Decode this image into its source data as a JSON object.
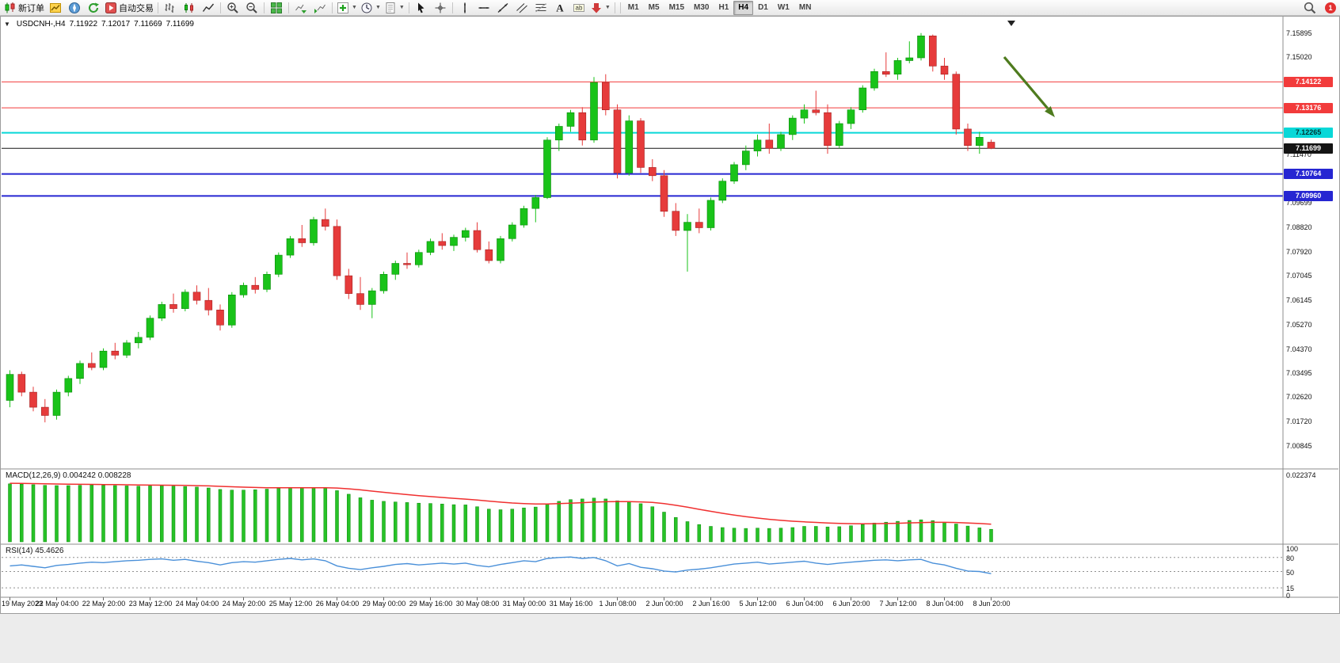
{
  "toolbar": {
    "new_order_label": "新订单",
    "autotrade_label": "自动交易",
    "buttons": [
      {
        "name": "new-order-button",
        "icon": "candlestick-new",
        "label_key": "new_order_label"
      },
      {
        "name": "market-watch-button",
        "icon": "market-watch"
      },
      {
        "name": "navigator-button",
        "icon": "navigator"
      },
      {
        "name": "refresh-button",
        "icon": "refresh"
      },
      {
        "name": "autotrade-button",
        "icon": "autotrade",
        "label_key": "autotrade_label"
      },
      {
        "sep": true
      },
      {
        "name": "bar-chart-button",
        "icon": "bars"
      },
      {
        "name": "candle-chart-button",
        "icon": "candles"
      },
      {
        "name": "line-chart-button",
        "icon": "line"
      },
      {
        "sep": true
      },
      {
        "name": "zoom-in-button",
        "icon": "zoom-in"
      },
      {
        "name": "zoom-out-button",
        "icon": "zoom-out"
      },
      {
        "sep": true
      },
      {
        "name": "tile-windows-button",
        "icon": "grid"
      },
      {
        "sep": true
      },
      {
        "name": "auto-scroll-button",
        "icon": "auto-scroll"
      },
      {
        "name": "chart-shift-button",
        "icon": "chart-shift"
      },
      {
        "sep": true
      },
      {
        "name": "indicators-button",
        "icon": "indicators",
        "dropdown": true
      },
      {
        "name": "periods-button",
        "icon": "clock",
        "dropdown": true
      },
      {
        "name": "templates-button",
        "icon": "template",
        "dropdown": true
      },
      {
        "sep": true
      },
      {
        "name": "cursor-button",
        "icon": "cursor"
      },
      {
        "name": "crosshair-button",
        "icon": "crosshair"
      },
      {
        "sep": true
      },
      {
        "name": "vertical-line-button",
        "icon": "vline"
      },
      {
        "name": "horizontal-line-button",
        "icon": "hline"
      },
      {
        "name": "trendline-button",
        "icon": "trendline"
      },
      {
        "name": "channel-button",
        "icon": "channel"
      },
      {
        "name": "fibonacci-button",
        "icon": "fibonacci"
      },
      {
        "name": "text-button",
        "icon": "text"
      },
      {
        "name": "label-button",
        "icon": "label"
      },
      {
        "name": "arrows-button",
        "icon": "arrows",
        "dropdown": true
      },
      {
        "sep": true
      }
    ],
    "timeframes": [
      "M1",
      "M5",
      "M15",
      "M30",
      "H1",
      "H4",
      "D1",
      "W1",
      "MN"
    ],
    "active_timeframe": "H4",
    "notification_count": "1"
  },
  "chart_header": {
    "symbol": "USDCNH-,H4",
    "open": "7.11922",
    "high": "7.12017",
    "low": "7.11669",
    "close": "7.11699"
  },
  "y_axis": {
    "plain_labels": [
      {
        "price": 7.15895,
        "text": "7.15895"
      },
      {
        "price": 7.1502,
        "text": "7.15020"
      },
      {
        "price": 7.1147,
        "text": "7.11470"
      },
      {
        "price": 7.09699,
        "text": "7.09699"
      },
      {
        "price": 7.0882,
        "text": "7.08820"
      },
      {
        "price": 7.0792,
        "text": "7.07920"
      },
      {
        "price": 7.07045,
        "text": "7.07045"
      },
      {
        "price": 7.06145,
        "text": "7.06145"
      },
      {
        "price": 7.0527,
        "text": "7.05270"
      },
      {
        "price": 7.0437,
        "text": "7.04370"
      },
      {
        "price": 7.03495,
        "text": "7.03495"
      },
      {
        "price": 7.0262,
        "text": "7.02620"
      },
      {
        "price": 7.0172,
        "text": "7.01720"
      },
      {
        "price": 7.00845,
        "text": "7.00845"
      }
    ]
  },
  "price_lines": [
    {
      "name": "resistance-1",
      "price": 7.14122,
      "text": "7.14122",
      "line_color": "#f23b3b",
      "badge_bg": "#f23b3b",
      "badge_fg": "#ffffff",
      "width": 1
    },
    {
      "name": "resistance-2",
      "price": 7.13176,
      "text": "7.13176",
      "line_color": "#f23b3b",
      "badge_bg": "#f23b3b",
      "badge_fg": "#ffffff",
      "width": 1
    },
    {
      "name": "pivot-line",
      "price": 7.12265,
      "text": "7.12265",
      "line_color": "#08d8d8",
      "badge_bg": "#08d8d8",
      "badge_fg": "#003333",
      "width": 2
    },
    {
      "name": "current-price-line",
      "price": 7.11699,
      "text": "7.11699",
      "line_color": "#141414",
      "badge_bg": "#141414",
      "badge_fg": "#ffffff",
      "width": 1
    },
    {
      "name": "support-1",
      "price": 7.10764,
      "text": "7.10764",
      "line_color": "#2626d2",
      "badge_bg": "#2626d2",
      "badge_fg": "#ffffff",
      "width": 2
    },
    {
      "name": "support-2",
      "price": 7.0996,
      "text": "7.09960",
      "line_color": "#2626d2",
      "badge_bg": "#2626d2",
      "badge_fg": "#ffffff",
      "width": 2
    }
  ],
  "x_axis_labels": [
    "19 May 2023",
    "22 May 04:00",
    "22 May 20:00",
    "23 May 12:00",
    "24 May 04:00",
    "24 May 20:00",
    "25 May 12:00",
    "26 May 04:00",
    "29 May 00:00",
    "29 May 16:00",
    "30 May 08:00",
    "31 May 00:00",
    "31 May 16:00",
    "1 Jun 08:00",
    "2 Jun 00:00",
    "2 Jun 16:00",
    "5 Jun 12:00",
    "6 Jun 04:00",
    "6 Jun 20:00",
    "7 Jun 12:00",
    "8 Jun 04:00",
    "8 Jun 20:00"
  ],
  "chart_data": {
    "type": "candlestick",
    "title": "USDCNH-,H4",
    "up_color": "#19c319",
    "down_color": "#e63b3b",
    "price_range": {
      "min": 7.0,
      "max": 7.163
    },
    "candles": [
      [
        7.025,
        7.036,
        7.0225,
        7.0345
      ],
      [
        7.0345,
        7.0355,
        7.0265,
        7.028
      ],
      [
        7.028,
        7.03,
        7.021,
        7.0225
      ],
      [
        7.0225,
        7.0255,
        7.017,
        7.0195
      ],
      [
        7.0195,
        7.029,
        7.018,
        7.028
      ],
      [
        7.028,
        7.034,
        7.0265,
        7.033
      ],
      [
        7.033,
        7.0395,
        7.031,
        7.0385
      ],
      [
        7.0385,
        7.0425,
        7.036,
        7.037
      ],
      [
        7.037,
        7.044,
        7.036,
        7.043
      ],
      [
        7.043,
        7.046,
        7.04,
        7.0415
      ],
      [
        7.0415,
        7.047,
        7.0405,
        7.046
      ],
      [
        7.046,
        7.05,
        7.044,
        7.048
      ],
      [
        7.048,
        7.056,
        7.047,
        7.055
      ],
      [
        7.055,
        7.061,
        7.054,
        7.06
      ],
      [
        7.06,
        7.064,
        7.057,
        7.0585
      ],
      [
        7.0585,
        7.0655,
        7.0575,
        7.0645
      ],
      [
        7.0645,
        7.067,
        7.06,
        7.0615
      ],
      [
        7.0615,
        7.066,
        7.056,
        7.058
      ],
      [
        7.058,
        7.06,
        7.0505,
        7.0525
      ],
      [
        7.0525,
        7.0645,
        7.0515,
        7.0635
      ],
      [
        7.0635,
        7.068,
        7.0625,
        7.067
      ],
      [
        7.067,
        7.07,
        7.064,
        7.0655
      ],
      [
        7.0655,
        7.072,
        7.0645,
        7.071
      ],
      [
        7.071,
        7.079,
        7.07,
        7.078
      ],
      [
        7.078,
        7.085,
        7.077,
        7.084
      ],
      [
        7.084,
        7.089,
        7.081,
        7.0825
      ],
      [
        7.0825,
        7.092,
        7.0815,
        7.091
      ],
      [
        7.091,
        7.095,
        7.087,
        7.0885
      ],
      [
        7.0885,
        7.091,
        7.069,
        7.0705
      ],
      [
        7.0705,
        7.073,
        7.062,
        7.064
      ],
      [
        7.064,
        7.07,
        7.058,
        7.06
      ],
      [
        7.06,
        7.066,
        7.055,
        7.065
      ],
      [
        7.065,
        7.072,
        7.064,
        7.071
      ],
      [
        7.071,
        7.076,
        7.069,
        7.075
      ],
      [
        7.075,
        7.079,
        7.073,
        7.0745
      ],
      [
        7.0745,
        7.08,
        7.0735,
        7.079
      ],
      [
        7.079,
        7.084,
        7.078,
        7.083
      ],
      [
        7.083,
        7.086,
        7.08,
        7.0815
      ],
      [
        7.0815,
        7.0855,
        7.0795,
        7.0845
      ],
      [
        7.0845,
        7.088,
        7.083,
        7.087
      ],
      [
        7.087,
        7.09,
        7.079,
        7.08
      ],
      [
        7.08,
        7.083,
        7.075,
        7.076
      ],
      [
        7.076,
        7.085,
        7.075,
        7.084
      ],
      [
        7.084,
        7.09,
        7.083,
        7.089
      ],
      [
        7.089,
        7.096,
        7.088,
        7.095
      ],
      [
        7.095,
        7.1,
        7.09,
        7.099
      ],
      [
        7.099,
        7.121,
        7.0985,
        7.12
      ],
      [
        7.12,
        7.126,
        7.116,
        7.125
      ],
      [
        7.125,
        7.131,
        7.123,
        7.13
      ],
      [
        7.13,
        7.132,
        7.118,
        7.12
      ],
      [
        7.12,
        7.143,
        7.119,
        7.141
      ],
      [
        7.141,
        7.144,
        7.129,
        7.131
      ],
      [
        7.131,
        7.133,
        7.106,
        7.108
      ],
      [
        7.108,
        7.129,
        7.107,
        7.127
      ],
      [
        7.127,
        7.128,
        7.108,
        7.11
      ],
      [
        7.11,
        7.113,
        7.105,
        7.107
      ],
      [
        7.107,
        7.109,
        7.092,
        7.094
      ],
      [
        7.094,
        7.097,
        7.085,
        7.087
      ],
      [
        7.087,
        7.093,
        7.072,
        7.09
      ],
      [
        7.09,
        7.095,
        7.086,
        7.088
      ],
      [
        7.088,
        7.099,
        7.087,
        7.098
      ],
      [
        7.098,
        7.106,
        7.097,
        7.105
      ],
      [
        7.105,
        7.112,
        7.104,
        7.111
      ],
      [
        7.111,
        7.118,
        7.109,
        7.116
      ],
      [
        7.116,
        7.122,
        7.114,
        7.12
      ],
      [
        7.12,
        7.126,
        7.115,
        7.117
      ],
      [
        7.117,
        7.123,
        7.116,
        7.122
      ],
      [
        7.122,
        7.129,
        7.12,
        7.128
      ],
      [
        7.128,
        7.133,
        7.126,
        7.131
      ],
      [
        7.131,
        7.138,
        7.129,
        7.13
      ],
      [
        7.13,
        7.133,
        7.115,
        7.118
      ],
      [
        7.118,
        7.127,
        7.117,
        7.126
      ],
      [
        7.126,
        7.132,
        7.124,
        7.131
      ],
      [
        7.131,
        7.14,
        7.13,
        7.139
      ],
      [
        7.139,
        7.146,
        7.138,
        7.145
      ],
      [
        7.145,
        7.152,
        7.143,
        7.144
      ],
      [
        7.144,
        7.15,
        7.142,
        7.149
      ],
      [
        7.149,
        7.156,
        7.148,
        7.15
      ],
      [
        7.15,
        7.159,
        7.149,
        7.158
      ],
      [
        7.158,
        7.1585,
        7.145,
        7.147
      ],
      [
        7.147,
        7.15,
        7.142,
        7.144
      ],
      [
        7.144,
        7.145,
        7.122,
        7.124
      ],
      [
        7.124,
        7.126,
        7.116,
        7.118
      ],
      [
        7.118,
        7.123,
        7.115,
        7.121
      ],
      [
        7.11922,
        7.12017,
        7.11669,
        7.11699
      ]
    ],
    "indicators": {
      "macd": {
        "label": "MACD(12,26,9)",
        "main_value": "0.004242",
        "signal_value": "0.008228",
        "axis_max_label": "0.022374",
        "scale_max": 0.022374,
        "histogram_color": "#27c227",
        "signal_color": "#f03030",
        "histogram": [
          0.0195,
          0.0194,
          0.0192,
          0.019,
          0.0189,
          0.0189,
          0.019,
          0.0191,
          0.019,
          0.0189,
          0.0188,
          0.0187,
          0.0188,
          0.0189,
          0.0187,
          0.0186,
          0.0184,
          0.0181,
          0.0176,
          0.0174,
          0.0174,
          0.0175,
          0.0177,
          0.018,
          0.0183,
          0.0181,
          0.0183,
          0.0182,
          0.0172,
          0.016,
          0.0148,
          0.014,
          0.0136,
          0.0134,
          0.0132,
          0.013,
          0.0129,
          0.0127,
          0.0125,
          0.0124,
          0.0118,
          0.011,
          0.0108,
          0.011,
          0.0114,
          0.0117,
          0.0128,
          0.0136,
          0.0142,
          0.0144,
          0.0147,
          0.0144,
          0.0138,
          0.0135,
          0.0128,
          0.0118,
          0.01,
          0.0082,
          0.0068,
          0.0058,
          0.0052,
          0.0048,
          0.0046,
          0.0045,
          0.0046,
          0.0045,
          0.0046,
          0.0048,
          0.0052,
          0.0052,
          0.005,
          0.0051,
          0.0054,
          0.0058,
          0.0063,
          0.0066,
          0.0069,
          0.0072,
          0.0074,
          0.0071,
          0.0066,
          0.006,
          0.0053,
          0.0047,
          0.0042
        ]
      },
      "rsi": {
        "label": "RSI(14)",
        "value": "45.4626",
        "line_color": "#4a90d9",
        "levels": [
          80,
          50,
          15
        ],
        "axis_labels": [
          {
            "v": 100,
            "text": "100"
          },
          {
            "v": 80,
            "text": "80"
          },
          {
            "v": 50,
            "text": "50"
          },
          {
            "v": 15,
            "text": "15"
          },
          {
            "v": 0,
            "text": "0"
          }
        ],
        "values": [
          62,
          64,
          61,
          58,
          63,
          65,
          68,
          70,
          69,
          71,
          73,
          74,
          76,
          77,
          74,
          76,
          72,
          69,
          64,
          69,
          71,
          70,
          73,
          76,
          78,
          75,
          77,
          73,
          62,
          57,
          54,
          58,
          61,
          65,
          67,
          64,
          66,
          68,
          66,
          68,
          63,
          60,
          65,
          69,
          73,
          71,
          78,
          80,
          81,
          78,
          80,
          73,
          62,
          67,
          59,
          56,
          51,
          49,
          53,
          55,
          58,
          62,
          66,
          68,
          70,
          66,
          68,
          70,
          72,
          68,
          65,
          68,
          70,
          72,
          74,
          75,
          73,
          75,
          76,
          68,
          64,
          57,
          51,
          50,
          45.5
        ]
      }
    }
  },
  "annotations": {
    "trend_arrow": {
      "description": "downward trend arrow",
      "color": "#4e7b1e"
    }
  }
}
